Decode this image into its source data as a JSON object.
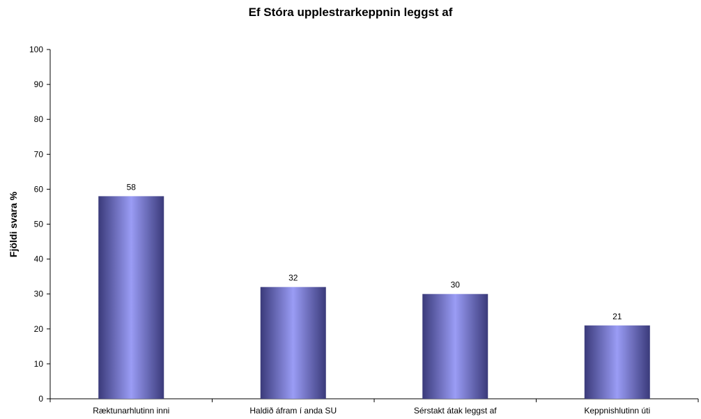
{
  "chart_data": {
    "type": "bar",
    "title": "Ef Stóra upplestrarkeppnin leggst af",
    "xlabel": "",
    "ylabel": "Fjöldi svara %",
    "ylim": [
      0,
      100
    ],
    "yticks": [
      0,
      10,
      20,
      30,
      40,
      50,
      60,
      70,
      80,
      90,
      100
    ],
    "categories": [
      "Ræktunarhlutinn inni",
      "Haldið áfram í anda SU",
      "Sérstakt átak leggst af",
      "Keppnishlutinn úti"
    ],
    "values": [
      58,
      32,
      30,
      21
    ],
    "data_labels": [
      "58",
      "32",
      "30",
      "21"
    ],
    "grid": false,
    "legend": "none",
    "colors": {
      "bar_edge": "#3a3a7a",
      "bar_center": "#9a9cf5",
      "axis": "#000000"
    }
  }
}
